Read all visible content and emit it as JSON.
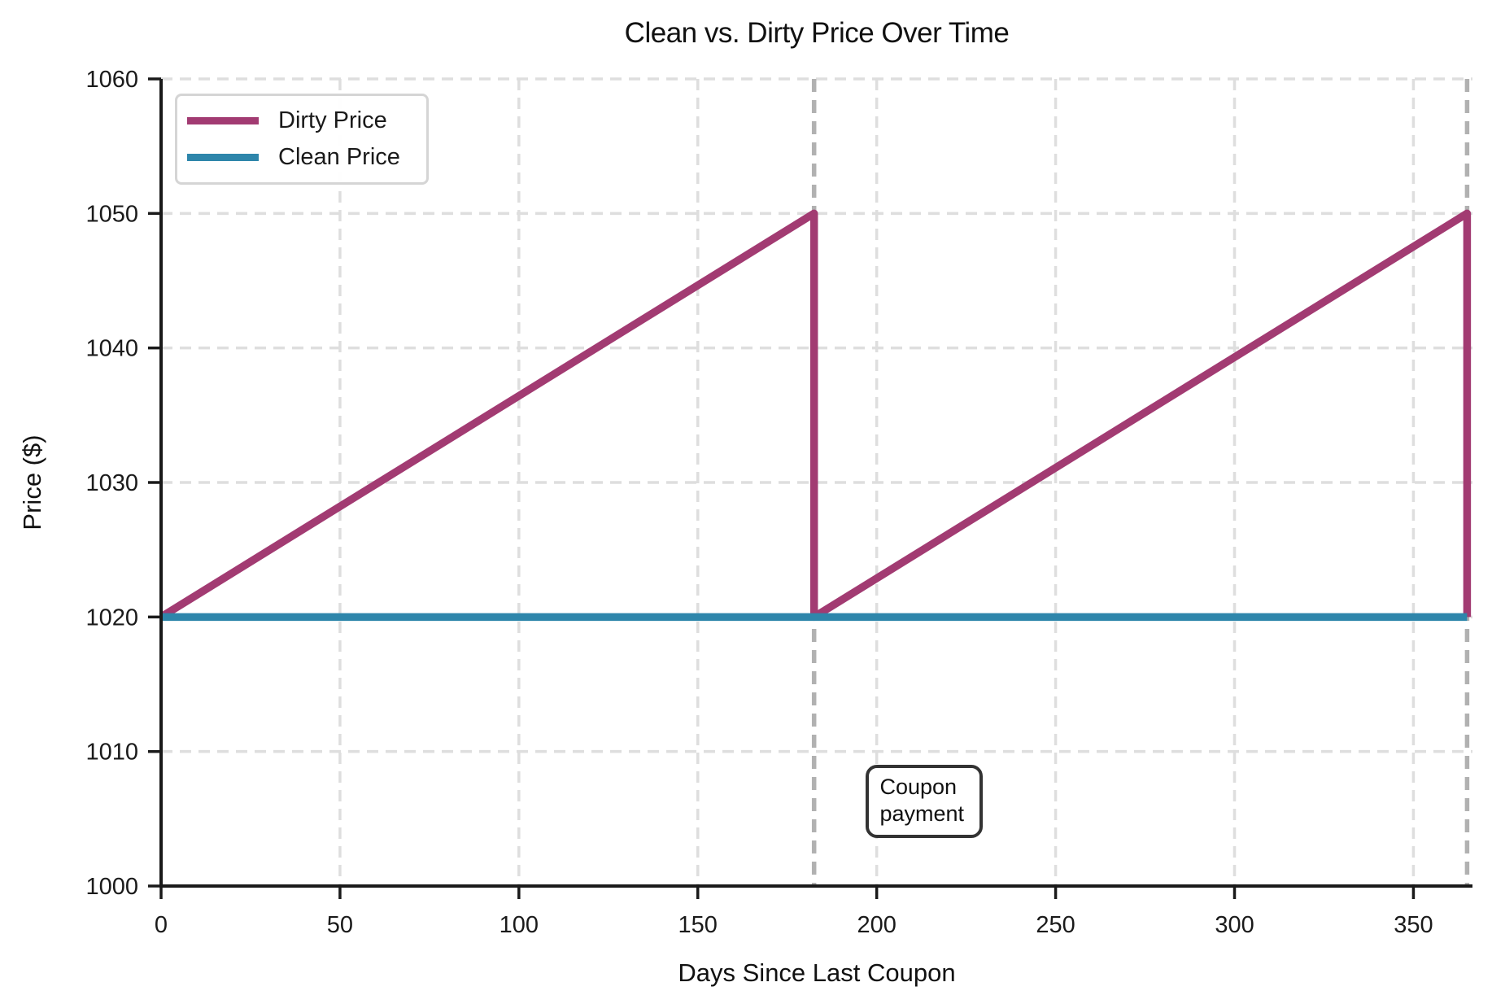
{
  "chart_data": {
    "type": "line",
    "title": "Clean vs. Dirty Price Over Time",
    "xlabel": "Days Since Last Coupon",
    "ylabel": "Price ($)",
    "xlim": [
      0,
      366.5
    ],
    "ylim": [
      1000,
      1060
    ],
    "x_ticks": [
      0,
      50,
      100,
      150,
      200,
      250,
      300,
      350
    ],
    "y_ticks": [
      1000,
      1010,
      1020,
      1030,
      1040,
      1050,
      1060
    ],
    "grid": true,
    "grid_style": "dashed",
    "legend_position": "upper-left",
    "series": [
      {
        "name": "Dirty Price",
        "color": "#A23B72",
        "points": [
          [
            0,
            1020
          ],
          [
            182.5,
            1050
          ],
          [
            182.5,
            1020
          ],
          [
            365,
            1050
          ],
          [
            365,
            1020
          ]
        ]
      },
      {
        "name": "Clean Price",
        "color": "#2E86AB",
        "points": [
          [
            0,
            1020
          ],
          [
            365,
            1020
          ]
        ]
      }
    ],
    "event_lines": {
      "x_values": [
        182.5,
        365
      ],
      "color": "#B1B1B1",
      "style": "dashed"
    },
    "annotation": {
      "text": "Coupon\npayment",
      "x": 197,
      "y": 1009
    },
    "colors": {
      "grid": "#DEDEDE",
      "spine": "#1a1a1a",
      "text": "#1a1a1a",
      "background": "#ffffff"
    }
  }
}
